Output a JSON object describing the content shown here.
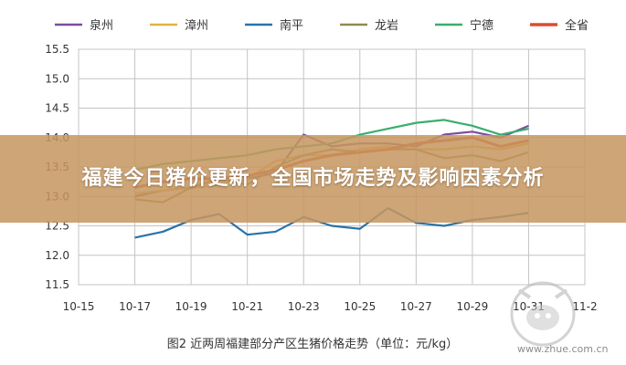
{
  "banner": {
    "title": "福建今日猪价更新，全国市场走势及影响因素分析"
  },
  "watermark": {
    "site": "www.zhue.com.cn"
  },
  "chart_data": {
    "type": "line",
    "caption": "图2  近两周福建部分产区生猪价格走势（单位：元/kg）",
    "ylim": [
      11.5,
      15.5
    ],
    "yticks": [
      "11.5",
      "12.0",
      "12.5",
      "13.0",
      "13.5",
      "14.0",
      "14.5",
      "15.0",
      "15.5"
    ],
    "xticks": [
      "10-15",
      "10-17",
      "10-19",
      "10-21",
      "10-23",
      "10-25",
      "10-27",
      "10-29",
      "10-31",
      "11-2"
    ],
    "xlim": [
      0,
      18
    ],
    "x": [
      2,
      3,
      4,
      5,
      6,
      7,
      8,
      9,
      10,
      11,
      12,
      13,
      14,
      15,
      16
    ],
    "legend_position": "top",
    "grid": true,
    "series": [
      {
        "name": "泉州",
        "color": "#7b4e9c",
        "values": [
          13.0,
          13.1,
          13.15,
          13.2,
          13.3,
          13.4,
          14.05,
          13.85,
          13.9,
          13.9,
          13.85,
          14.05,
          14.1,
          14.0,
          14.2
        ]
      },
      {
        "name": "漳州",
        "color": "#e0b43c",
        "values": [
          13.05,
          13.1,
          13.15,
          13.2,
          13.3,
          13.6,
          13.7,
          13.7,
          13.8,
          13.85,
          13.8,
          13.8,
          13.85,
          13.8,
          13.9
        ]
      },
      {
        "name": "南平",
        "color": "#2a73a8",
        "values": [
          12.3,
          12.4,
          12.6,
          12.7,
          12.35,
          12.4,
          12.65,
          12.5,
          12.45,
          12.8,
          12.55,
          12.5,
          12.6,
          12.65,
          12.72
        ]
      },
      {
        "name": "龙岩",
        "color": "#8f8a50",
        "values": [
          12.95,
          12.9,
          13.15,
          13.3,
          13.2,
          13.5,
          13.7,
          13.8,
          13.75,
          13.8,
          13.8,
          13.65,
          13.7,
          13.6,
          13.75
        ]
      },
      {
        "name": "宁德",
        "color": "#3aae6e",
        "values": [
          13.45,
          13.55,
          13.6,
          13.65,
          13.7,
          13.8,
          13.85,
          13.9,
          14.05,
          14.15,
          14.25,
          14.3,
          14.2,
          14.05,
          14.15
        ]
      },
      {
        "name": "全省",
        "color": "#e04a2a",
        "values": [
          13.15,
          13.25,
          13.3,
          13.3,
          13.35,
          13.45,
          13.6,
          13.7,
          13.75,
          13.8,
          13.9,
          13.95,
          14.0,
          13.85,
          13.95
        ]
      }
    ]
  }
}
